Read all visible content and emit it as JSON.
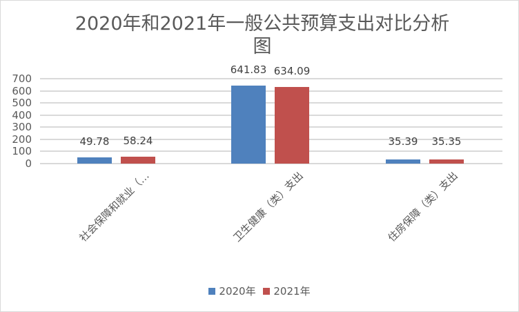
{
  "title_line1": "2020年和2021年一般公共预算支出对比分析",
  "title_line2": "图",
  "colors": {
    "2020年": "#4f81bd",
    "2021年": "#c0504d",
    "grid": "#d9d9d9",
    "text": "#595959"
  },
  "y_ticks": [
    "700",
    "600",
    "500",
    "400",
    "300",
    "200",
    "100",
    "0"
  ],
  "categories": [
    "社会保障和就业（…",
    "卫生健康（类）支出",
    "住房保障（类）支出"
  ],
  "data_labels": {
    "s2020": [
      "49.78",
      "641.83",
      "35.39"
    ],
    "s2021": [
      "58.24",
      "634.09",
      "35.35"
    ]
  },
  "legend": [
    {
      "name": "2020年",
      "color": "#4f81bd"
    },
    {
      "name": "2021年",
      "color": "#c0504d"
    }
  ],
  "chart_data": {
    "type": "bar",
    "title": "2020年和2021年一般公共预算支出对比分析图",
    "categories": [
      "社会保障和就业（…",
      "卫生健康（类）支出",
      "住房保障（类）支出"
    ],
    "series": [
      {
        "name": "2020年",
        "values": [
          49.78,
          641.83,
          35.39
        ],
        "color": "#4f81bd"
      },
      {
        "name": "2021年",
        "values": [
          58.24,
          634.09,
          35.35
        ],
        "color": "#c0504d"
      }
    ],
    "xlabel": "",
    "ylabel": "",
    "ylim": [
      0,
      700
    ],
    "yticks": [
      0,
      100,
      200,
      300,
      400,
      500,
      600,
      700
    ],
    "grid": true,
    "legend_position": "bottom",
    "data_labels": true
  }
}
